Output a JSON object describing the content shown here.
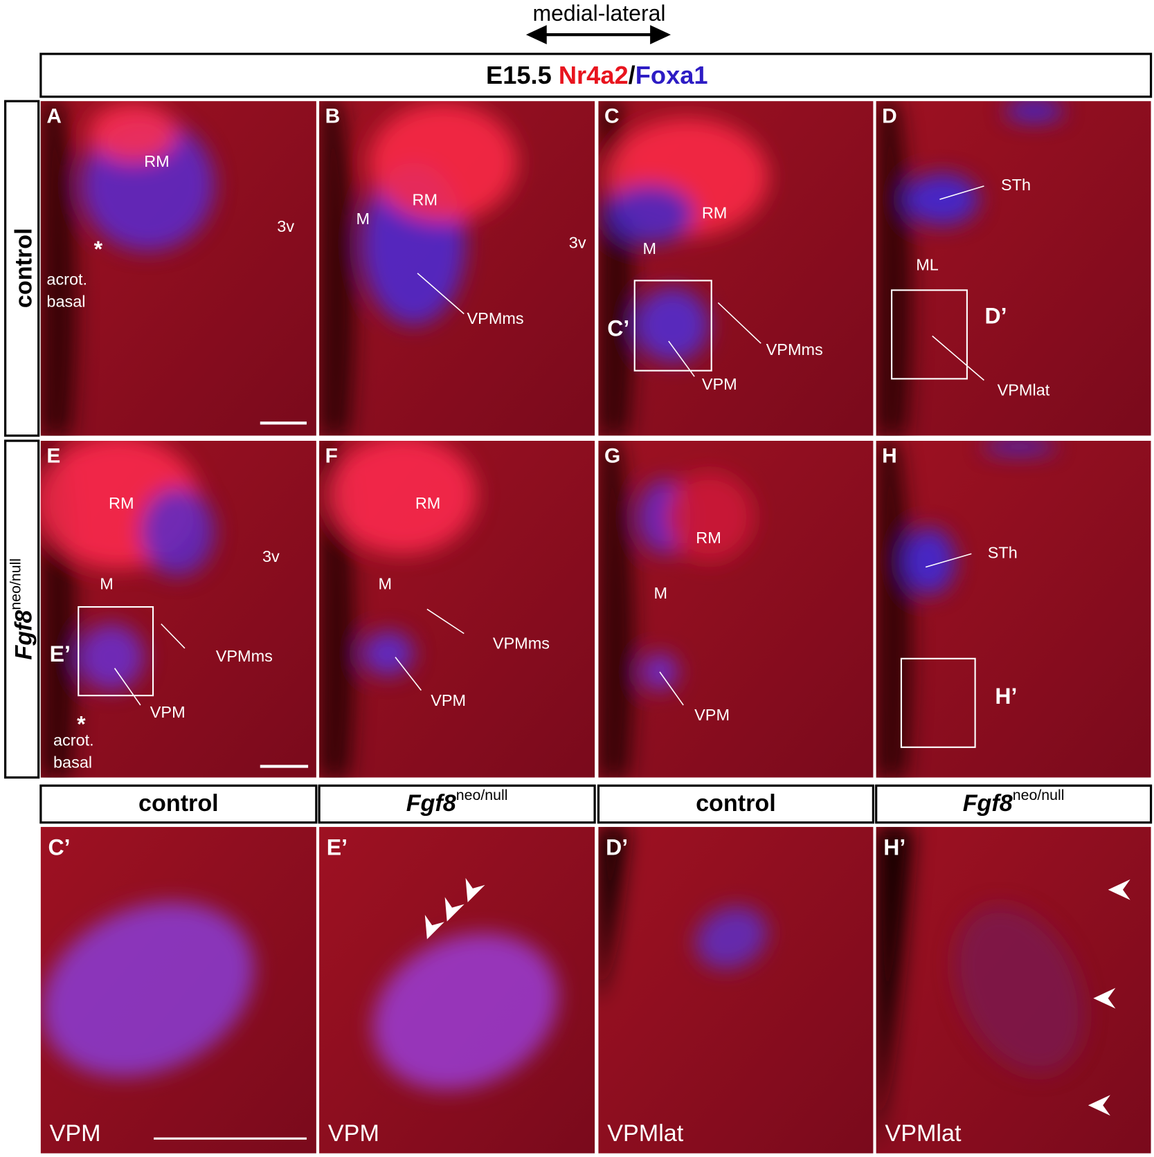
{
  "header": {
    "axis_label": "medial-lateral",
    "title": {
      "stage": "E15.5",
      "marker1": "Nr4a2",
      "separator": "/",
      "marker2": "Foxa1"
    }
  },
  "rows": [
    {
      "label": "control"
    },
    {
      "label": {
        "gene": "Fgf8",
        "genotype": "neo/null"
      }
    }
  ],
  "panels": [
    {
      "letter": "A",
      "labels": [
        "RM",
        "3v",
        "*",
        "acrot.",
        "basal"
      ]
    },
    {
      "letter": "B",
      "labels": [
        "M",
        "RM",
        "3v",
        "VPMms"
      ]
    },
    {
      "letter": "C",
      "labels": [
        "M",
        "RM",
        "C’",
        "VPM",
        "VPMms"
      ]
    },
    {
      "letter": "D",
      "labels": [
        "STh",
        "ML",
        "D’",
        "VPMlat"
      ]
    },
    {
      "letter": "E",
      "labels": [
        "RM",
        "M",
        "3v",
        "E’",
        "VPMms",
        "VPM",
        "*",
        "acrot.",
        "basal"
      ]
    },
    {
      "letter": "F",
      "labels": [
        "RM",
        "M",
        "VPMms",
        "VPM"
      ]
    },
    {
      "letter": "G",
      "labels": [
        "RM",
        "M",
        "VPM"
      ]
    },
    {
      "letter": "H",
      "labels": [
        "STh",
        "H’"
      ]
    }
  ],
  "zoom_headers": [
    {
      "text": "control"
    },
    {
      "gene": "Fgf8",
      "genotype": "neo/null"
    },
    {
      "text": "control"
    },
    {
      "gene": "Fgf8",
      "genotype": "neo/null"
    }
  ],
  "zoom_panels": [
    {
      "letter": "C’",
      "label": "VPM"
    },
    {
      "letter": "E’",
      "label": "VPM"
    },
    {
      "letter": "D’",
      "label": "VPMlat"
    },
    {
      "letter": "H’",
      "label": "VPMlat"
    }
  ]
}
